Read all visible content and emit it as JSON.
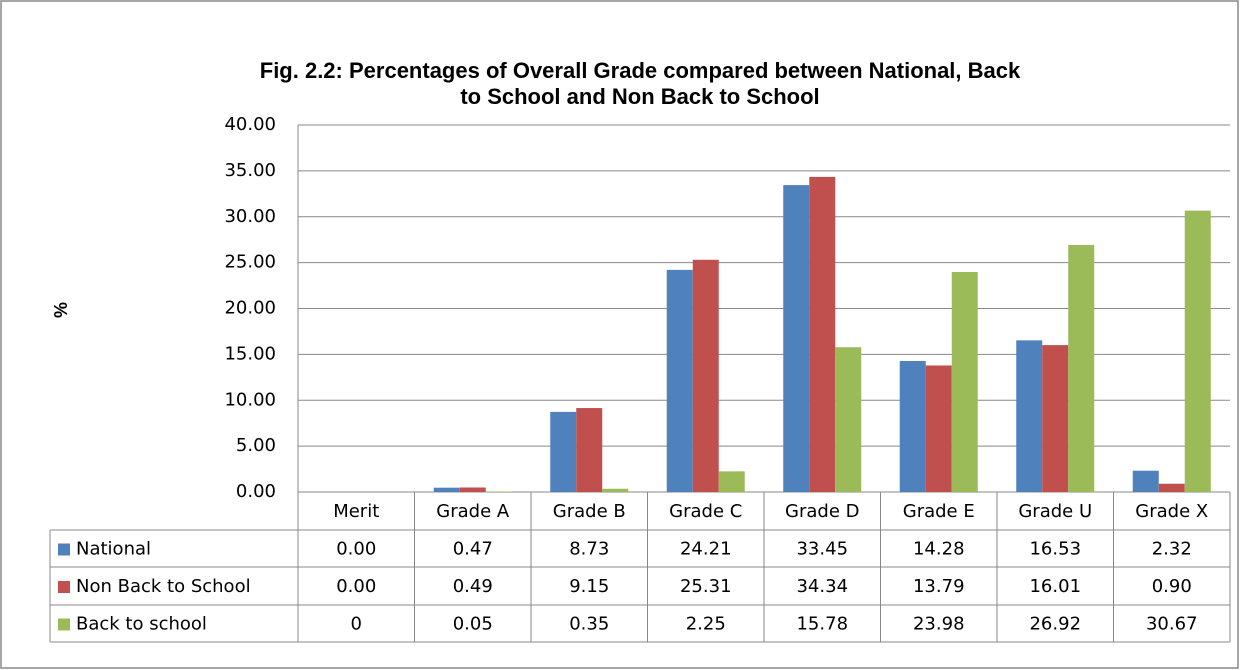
{
  "chart_data": {
    "type": "bar",
    "title": "Fig. 2.2: Percentages of Overall Grade compared between National, Back to School and Non Back to School",
    "y_label": "%",
    "categories": [
      "Merit",
      "Grade A",
      "Grade B",
      "Grade C",
      "Grade D",
      "Grade E",
      "Grade U",
      "Grade X"
    ],
    "series": [
      {
        "name": "National",
        "color": "#4f81bd",
        "values": [
          0,
          0.47,
          8.73,
          24.21,
          33.45,
          14.28,
          16.53,
          2.32
        ],
        "value_labels": [
          "0.00",
          "0.47",
          "8.73",
          "24.21",
          "33.45",
          "14.28",
          "16.53",
          "2.32"
        ]
      },
      {
        "name": "Non Back to School",
        "color": "#c0504d",
        "values": [
          0,
          0.49,
          9.15,
          25.31,
          34.34,
          13.79,
          16.01,
          0.9
        ],
        "value_labels": [
          "0.00",
          "0.49",
          "9.15",
          "25.31",
          "34.34",
          "13.79",
          "16.01",
          "0.90"
        ]
      },
      {
        "name": "Back to school",
        "color": "#9bbb59",
        "values": [
          0,
          0.05,
          0.35,
          2.25,
          15.78,
          23.98,
          26.92,
          30.67
        ]
      }
    ],
    "ylim": [
      0,
      40
    ],
    "yticks": [
      {
        "value": 0,
        "label": "0.00"
      },
      {
        "value": 5,
        "label": "5.00"
      },
      {
        "value": 10,
        "label": "10.00"
      },
      {
        "value": 15,
        "label": "15.00"
      },
      {
        "value": 20,
        "label": "20.00"
      },
      {
        "value": 25,
        "label": "25.00"
      },
      {
        "value": 30,
        "label": "30.00"
      },
      {
        "value": 35,
        "label": "35.00"
      },
      {
        "value": 40,
        "label": "40.00"
      }
    ],
    "grid": true,
    "data_table": true
  }
}
